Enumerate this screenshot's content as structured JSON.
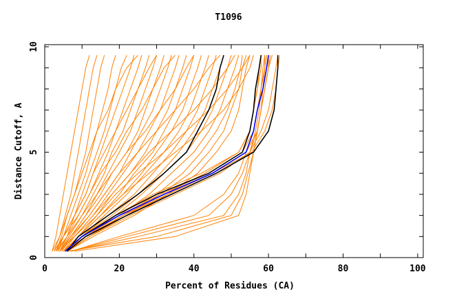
{
  "chart_data": {
    "type": "line",
    "title": "T1096",
    "xlabel": "Percent of Residues (CA)",
    "ylabel": "Distance Cutoff, A",
    "xlim": [
      0,
      101.5
    ],
    "ylim": [
      0,
      10.1
    ],
    "xticks": [
      0,
      20,
      40,
      60,
      80,
      100
    ],
    "yticks": [
      0,
      5,
      10
    ],
    "grid": false,
    "y_levels": [
      0.3,
      1,
      2,
      3,
      4,
      5,
      6,
      7,
      8,
      9,
      9.6
    ],
    "orange_color": "#ff8000",
    "orange_series": [
      [
        2,
        3,
        4,
        5,
        6,
        7,
        8,
        9,
        10,
        11,
        12
      ],
      [
        2.5,
        4,
        5.5,
        7,
        8,
        9,
        10,
        11,
        12,
        13,
        14
      ],
      [
        3,
        4.5,
        6,
        8,
        9.5,
        11,
        12,
        13,
        14,
        15,
        16
      ],
      [
        3,
        5,
        7,
        9,
        11,
        12.5,
        14,
        15.5,
        17,
        18,
        19
      ],
      [
        3.5,
        5,
        8,
        10,
        12,
        14,
        16,
        17.5,
        19,
        20.5,
        22
      ],
      [
        3.5,
        6,
        8,
        11,
        13,
        15,
        17,
        19,
        21,
        23,
        24
      ],
      [
        4,
        6,
        9,
        12,
        14.5,
        17,
        19,
        21,
        23,
        25,
        26
      ],
      [
        4,
        6.5,
        10,
        13,
        16,
        18,
        21,
        23,
        25,
        27,
        28
      ],
      [
        4,
        7,
        11,
        14,
        17,
        20,
        23,
        25,
        27,
        29,
        30
      ],
      [
        4.5,
        7,
        11,
        15,
        18,
        22,
        25,
        27,
        29,
        31,
        32
      ],
      [
        4.5,
        7.5,
        12,
        16,
        20,
        23,
        26,
        29,
        31,
        33,
        34
      ],
      [
        5,
        8,
        13,
        17,
        21,
        25,
        28,
        31,
        33,
        35,
        36
      ],
      [
        5,
        8,
        14,
        18,
        23,
        27,
        30,
        33,
        35,
        37,
        38
      ],
      [
        5,
        9,
        15,
        20,
        24,
        29,
        32,
        35,
        37,
        39,
        40
      ],
      [
        5.5,
        9,
        15,
        21,
        26,
        30,
        34,
        37,
        39,
        41,
        42
      ],
      [
        5.5,
        10,
        16,
        22,
        27,
        32,
        36,
        39,
        41,
        43,
        44
      ],
      [
        6,
        10,
        17,
        24,
        29,
        34,
        38,
        41,
        43,
        45,
        46
      ],
      [
        6,
        10,
        18,
        25,
        31,
        36,
        40,
        43,
        45,
        47,
        48
      ],
      [
        6,
        11,
        19,
        26,
        32,
        38,
        42,
        45,
        47,
        49,
        50
      ],
      [
        6,
        11,
        20,
        28,
        34,
        40,
        44,
        47,
        49,
        51,
        52
      ],
      [
        6,
        12,
        21,
        30,
        37,
        42,
        46,
        49,
        51,
        52.5,
        53
      ],
      [
        6,
        12,
        22,
        31,
        39,
        44,
        48,
        50,
        52,
        53,
        54
      ],
      [
        6,
        13,
        24,
        33,
        41,
        46,
        50,
        52,
        53,
        54,
        55
      ],
      [
        5,
        11,
        21,
        32,
        43,
        52,
        55,
        56,
        57,
        58,
        58
      ],
      [
        5,
        10,
        20,
        31,
        44,
        53,
        56,
        57,
        58,
        59,
        59.5
      ],
      [
        6,
        11,
        22,
        33,
        45,
        54,
        57,
        58,
        59,
        60,
        61
      ],
      [
        6,
        12,
        23,
        35,
        47,
        55,
        58,
        60,
        61,
        62,
        62.5
      ],
      [
        5.5,
        11,
        21,
        33,
        45,
        55.5,
        59,
        61,
        62,
        62.5,
        63
      ],
      [
        6,
        10,
        19,
        29,
        42,
        52,
        55,
        56,
        57,
        57.5,
        58
      ],
      [
        7,
        20,
        40,
        48,
        52,
        54,
        56,
        57,
        58,
        58.5,
        59
      ],
      [
        7,
        25,
        48,
        52,
        54,
        55,
        56.5,
        57.5,
        58,
        59,
        59
      ],
      [
        6,
        30,
        50,
        53,
        54.5,
        56,
        57,
        58,
        59,
        60,
        60
      ],
      [
        7,
        22,
        44,
        50,
        53,
        55,
        57,
        58,
        59,
        60,
        60.5
      ],
      [
        8,
        35,
        52,
        54,
        55,
        56,
        57,
        58,
        58.5,
        59,
        59.5
      ],
      [
        5,
        9,
        14,
        19,
        25,
        32,
        38,
        44,
        49,
        53,
        55
      ],
      [
        5,
        9,
        15,
        21,
        28,
        35,
        42,
        48,
        52,
        55,
        56
      ],
      [
        4,
        8,
        13,
        18,
        23,
        28,
        34,
        40,
        45,
        49,
        51
      ],
      [
        4,
        7,
        12,
        16,
        20,
        25,
        30,
        35,
        40,
        44,
        47
      ],
      [
        3,
        6,
        10,
        14,
        18,
        22,
        27,
        31,
        35,
        38,
        40
      ],
      [
        3,
        5,
        9,
        12,
        15,
        19,
        22,
        26,
        29,
        32,
        35
      ],
      [
        2.5,
        5,
        8,
        11,
        13,
        16,
        19,
        22,
        25,
        28,
        30
      ],
      [
        2,
        4,
        6,
        8,
        10,
        12,
        14,
        17,
        19,
        22,
        25
      ]
    ],
    "black_series": [
      [
        6,
        9,
        17,
        25,
        32,
        38,
        41,
        44,
        46,
        47,
        48
      ],
      [
        5.5,
        10,
        19,
        30,
        44,
        53,
        55,
        56,
        56.5,
        57.5,
        58
      ],
      [
        6,
        11,
        22,
        34,
        46,
        56,
        60,
        61.5,
        62,
        62.5,
        62.5
      ]
    ],
    "blue_series": [
      [
        5.5,
        10,
        20,
        32,
        45,
        54,
        56,
        57,
        58.5,
        59.5,
        60
      ]
    ],
    "black_color": "#000000",
    "blue_color": "#0000ff"
  }
}
